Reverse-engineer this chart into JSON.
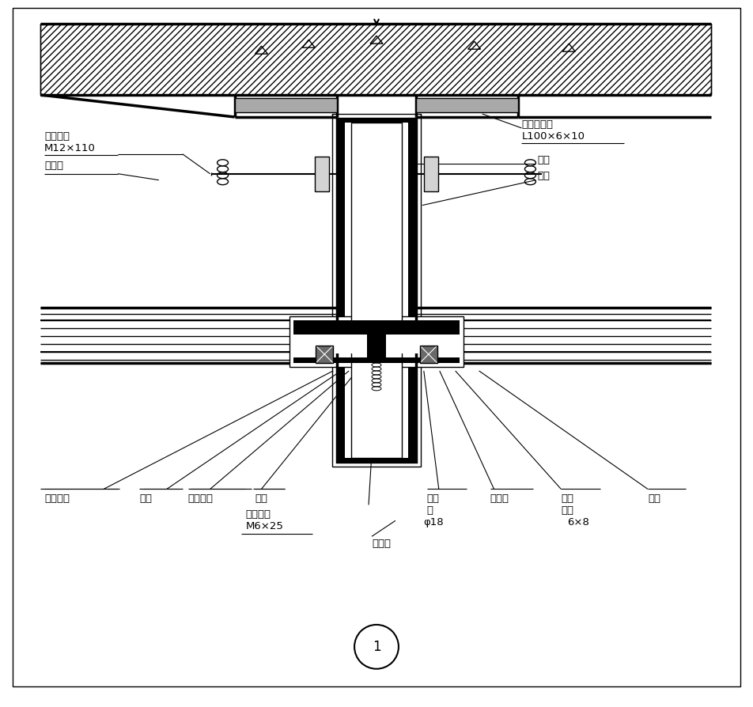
{
  "bg_color": "#ffffff",
  "line_color": "#000000",
  "fig_width": 9.52,
  "fig_height": 8.95,
  "title_circle": "1",
  "annotations": {
    "left": [
      {
        "lines": [
          "镀锌螺栓",
          "M12×110"
        ],
        "underline": true
      },
      {
        "lines": [
          "绝缘片"
        ],
        "underline": false
      }
    ],
    "right": [
      {
        "lines": [
          "立柱钢角码",
          "L100×6×10"
        ],
        "underline": true
      },
      {
        "lines": [
          "筒芯"
        ],
        "underline": false
      },
      {
        "lines": [
          "立柱"
        ],
        "underline": false
      }
    ],
    "bottom_left": [
      {
        "text": "中空玻璃"
      },
      {
        "text": "横梁"
      },
      {
        "text": "玻璃副框"
      },
      {
        "text": "压板"
      }
    ],
    "bottom_center": [
      {
        "lines": [
          "圆头螺钉",
          "M6×25"
        ],
        "underline": true
      },
      {
        "lines": [
          "耐候胶"
        ],
        "underline": false
      }
    ],
    "bottom_right": [
      {
        "lines": [
          "泡沫",
          "条",
          "φ18"
        ],
        "label": "泡沫条"
      },
      {
        "lines": [
          "结构胶"
        ],
        "label": "结构胶"
      },
      {
        "lines": [
          "双面",
          "胶贴",
          "6×8"
        ],
        "label": "双面胶贴"
      },
      {
        "lines": [
          "胶垫"
        ],
        "label": "胶垫"
      }
    ]
  }
}
